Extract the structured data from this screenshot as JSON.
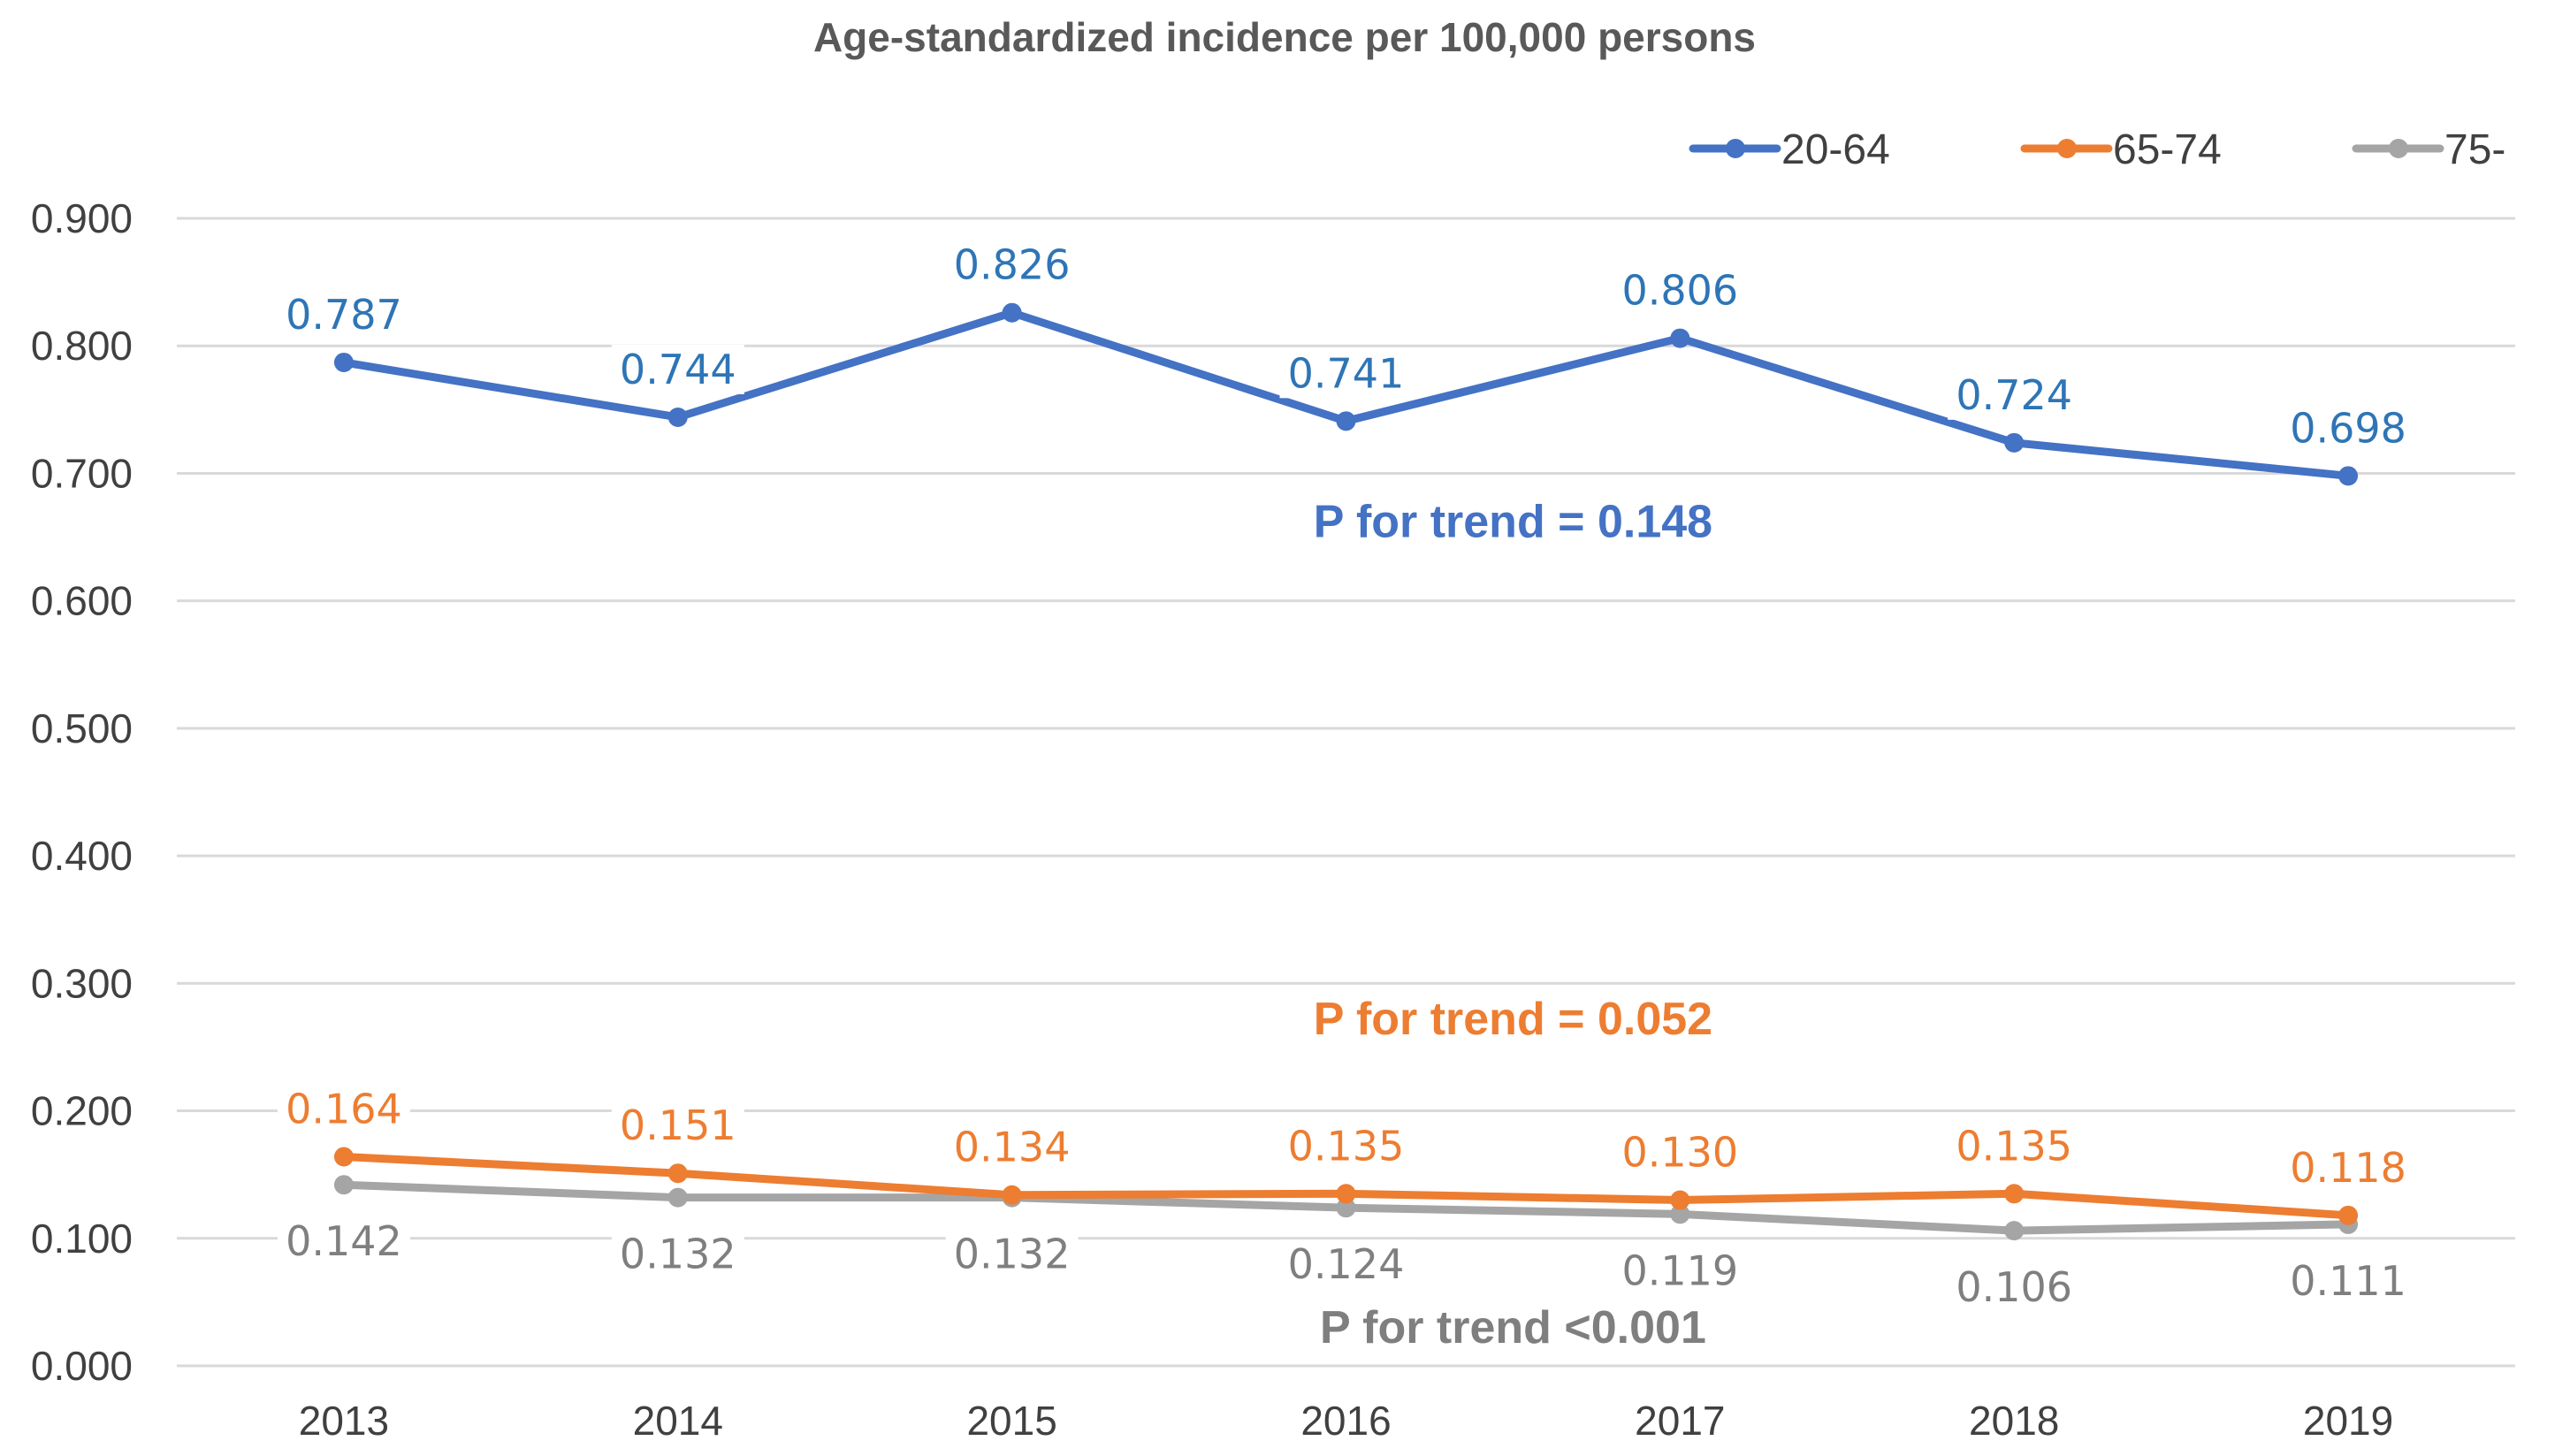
{
  "chart_data": {
    "type": "line",
    "title": "Age-standardized incidence per 100,000 persons",
    "xlabel": "",
    "ylabel": "",
    "categories": [
      "2013",
      "2014",
      "2015",
      "2016",
      "2017",
      "2018",
      "2019"
    ],
    "ylim": [
      0,
      0.9
    ],
    "yticks": [
      "0.000",
      "0.100",
      "0.200",
      "0.300",
      "0.400",
      "0.500",
      "0.600",
      "0.700",
      "0.800",
      "0.900"
    ],
    "grid": true,
    "legend_position": "top-right",
    "series": [
      {
        "name": "20-64",
        "color": "#4472C4",
        "values": [
          0.787,
          0.744,
          0.826,
          0.741,
          0.806,
          0.724,
          0.698
        ],
        "labels": [
          "0.787",
          "0.744",
          "0.826",
          "0.741",
          "0.806",
          "0.724",
          "0.698"
        ],
        "label_placement": "above",
        "label_color": "#2E75B6",
        "trend_text": "P for trend = 0.148",
        "trend_color": "#4472C4"
      },
      {
        "name": "65-74",
        "color": "#ED7D31",
        "values": [
          0.164,
          0.151,
          0.134,
          0.135,
          0.13,
          0.135,
          0.118
        ],
        "labels": [
          "0.164",
          "0.151",
          "0.134",
          "0.135",
          "0.130",
          "0.135",
          "0.118"
        ],
        "label_placement": "above",
        "label_color": "#ED7D31",
        "trend_text": "P for trend = 0.052",
        "trend_color": "#ED7D31"
      },
      {
        "name": "75-",
        "color": "#A5A5A5",
        "values": [
          0.142,
          0.132,
          0.132,
          0.124,
          0.119,
          0.106,
          0.111
        ],
        "labels": [
          "0.142",
          "0.132",
          "0.132",
          "0.124",
          "0.119",
          "0.106",
          "0.111"
        ],
        "label_placement": "below",
        "label_color": "#7F7F7F",
        "trend_text": "P for trend <0.001",
        "trend_color": "#7F7F7F"
      }
    ]
  }
}
